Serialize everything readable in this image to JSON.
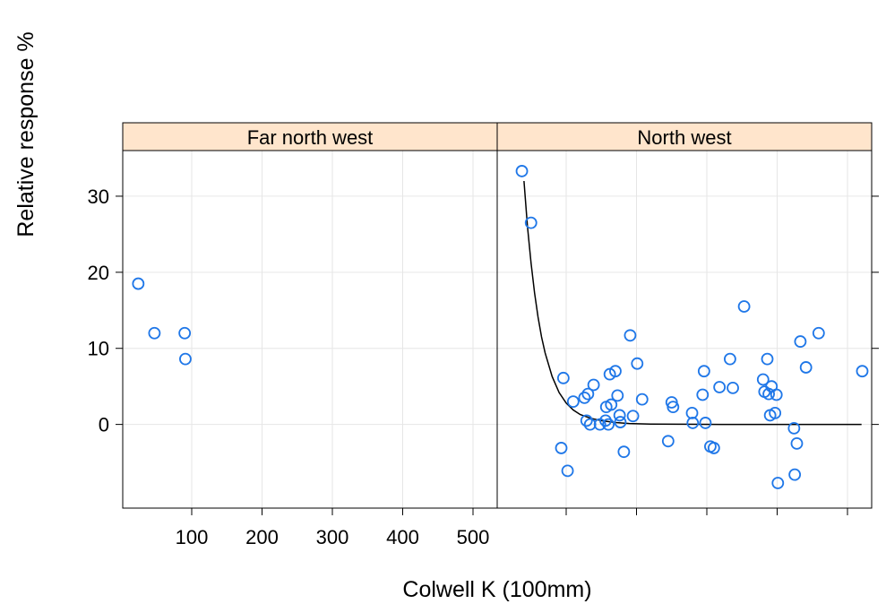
{
  "chart_data": {
    "type": "scatter",
    "xlabel": "Colwell K (100mm)",
    "ylabel": "Relative response %",
    "xlim": [
      0,
      540
    ],
    "ylim": [
      -11,
      36
    ],
    "x_ticks": [
      100,
      200,
      300,
      400,
      500
    ],
    "y_ticks": [
      0,
      10,
      20,
      30
    ],
    "grid": true,
    "point_color": "#1f77e8",
    "panels": [
      {
        "name": "Far north west",
        "points": [
          {
            "x": 24,
            "y": 18.5
          },
          {
            "x": 47,
            "y": 12.0
          },
          {
            "x": 90,
            "y": 12.0
          },
          {
            "x": 91,
            "y": 8.6
          }
        ]
      },
      {
        "name": "North west",
        "points": [
          {
            "x": 37,
            "y": 33.3
          },
          {
            "x": 50,
            "y": 26.5
          },
          {
            "x": 93,
            "y": -3.1
          },
          {
            "x": 96,
            "y": 6.1
          },
          {
            "x": 102,
            "y": -6.1
          },
          {
            "x": 110,
            "y": 3.0
          },
          {
            "x": 126,
            "y": 3.5
          },
          {
            "x": 129,
            "y": 0.5
          },
          {
            "x": 131,
            "y": 4.0
          },
          {
            "x": 134,
            "y": 0.0
          },
          {
            "x": 139,
            "y": 5.2
          },
          {
            "x": 148,
            "y": 0.0
          },
          {
            "x": 156,
            "y": 0.5
          },
          {
            "x": 157,
            "y": 2.3
          },
          {
            "x": 160,
            "y": 0.0
          },
          {
            "x": 162,
            "y": 6.6
          },
          {
            "x": 164,
            "y": 2.6
          },
          {
            "x": 170,
            "y": 7.0
          },
          {
            "x": 173,
            "y": 3.8
          },
          {
            "x": 176,
            "y": 1.2
          },
          {
            "x": 177,
            "y": 0.3
          },
          {
            "x": 182,
            "y": -3.6
          },
          {
            "x": 191,
            "y": 11.7
          },
          {
            "x": 195,
            "y": 1.1
          },
          {
            "x": 201,
            "y": 8.0
          },
          {
            "x": 208,
            "y": 3.3
          },
          {
            "x": 245,
            "y": -2.2
          },
          {
            "x": 250,
            "y": 2.9
          },
          {
            "x": 252,
            "y": 2.3
          },
          {
            "x": 279,
            "y": 1.5
          },
          {
            "x": 280,
            "y": 0.2
          },
          {
            "x": 294,
            "y": 3.9
          },
          {
            "x": 296,
            "y": 7.0
          },
          {
            "x": 298,
            "y": 0.2
          },
          {
            "x": 305,
            "y": -2.9
          },
          {
            "x": 310,
            "y": -3.1
          },
          {
            "x": 318,
            "y": 4.9
          },
          {
            "x": 333,
            "y": 8.6
          },
          {
            "x": 337,
            "y": 4.8
          },
          {
            "x": 353,
            "y": 15.5
          },
          {
            "x": 380,
            "y": 5.9
          },
          {
            "x": 382,
            "y": 4.3
          },
          {
            "x": 386,
            "y": 8.6
          },
          {
            "x": 388,
            "y": 4.0
          },
          {
            "x": 390,
            "y": 1.2
          },
          {
            "x": 392,
            "y": 5.0
          },
          {
            "x": 397,
            "y": 1.5
          },
          {
            "x": 399,
            "y": 3.9
          },
          {
            "x": 401,
            "y": -7.7
          },
          {
            "x": 424,
            "y": -0.5
          },
          {
            "x": 425,
            "y": -6.6
          },
          {
            "x": 428,
            "y": -2.5
          },
          {
            "x": 433,
            "y": 10.9
          },
          {
            "x": 441,
            "y": 7.5
          },
          {
            "x": 459,
            "y": 12.0
          },
          {
            "x": 521,
            "y": 7.0
          }
        ],
        "fit_line": {
          "x": [
            40,
            45,
            50,
            55,
            60,
            65,
            70,
            80,
            90,
            100,
            110,
            120,
            135,
            150,
            170,
            190,
            220,
            260,
            320,
            400,
            520
          ],
          "y": [
            32.0,
            26.0,
            21.2,
            17.3,
            14.1,
            11.5,
            9.4,
            6.3,
            4.2,
            2.8,
            1.9,
            1.3,
            0.8,
            0.5,
            0.25,
            0.12,
            0.05,
            0.02,
            0.0,
            0.0,
            0.0
          ]
        }
      }
    ]
  }
}
